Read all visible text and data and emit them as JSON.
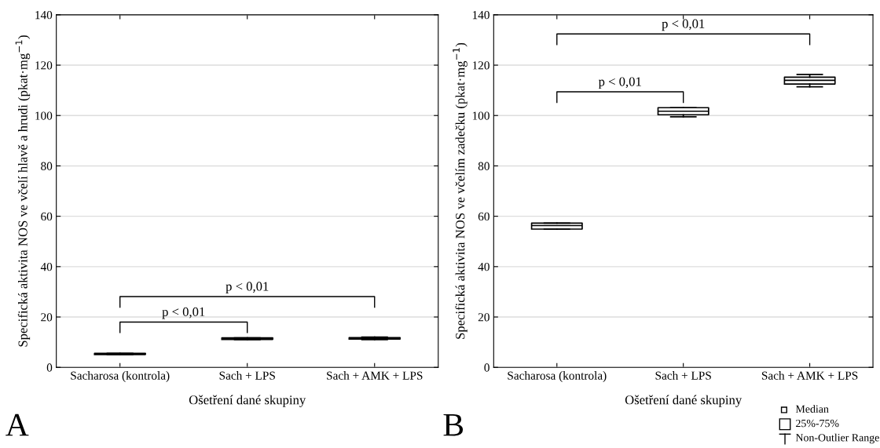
{
  "chart_data": [
    {
      "type": "box",
      "title": "A",
      "xlabel": "Ošetření dané skupiny",
      "ylabel": "Specifická aktivita NOS ve včelí hlavě a hrudi (pkat·mg$^{−1}$)",
      "categories": [
        "Sacharosa (kontrola)",
        "Sach + LPS",
        "Sach + AMK + LPS"
      ],
      "boxes": [
        {
          "low": 5.1,
          "q1": 5.1,
          "median": 5.3,
          "q3": 5.6,
          "high": 5.6
        },
        {
          "low": 11,
          "q1": 11.1,
          "median": 11.3,
          "q3": 11.7,
          "high": 11.7
        },
        {
          "low": 11,
          "q1": 11.2,
          "median": 11.5,
          "q3": 11.8,
          "high": 12
        }
      ],
      "ylim": [
        0,
        140
      ],
      "yticks": [
        0,
        20,
        40,
        60,
        80,
        100,
        120,
        140
      ],
      "grid": "y",
      "annotations": [
        "p < 0,01",
        "p < 0,01"
      ]
    },
    {
      "type": "box",
      "title": "B",
      "xlabel": "Ošetření dané skupiny",
      "ylabel": "Specifická aktivita NOS ve včelím zadečku (pkat·mg$^{−1}$)",
      "categories": [
        "Sacharosa (kontrola)",
        "Sach + LPS",
        "Sach + AMK + LPS"
      ],
      "boxes": [
        {
          "low": 54.9,
          "q1": 54.9,
          "median": 56.3,
          "q3": 57.3,
          "high": 57.3
        },
        {
          "low": 99.5,
          "q1": 100.3,
          "median": 101.7,
          "q3": 103.1,
          "high": 103.1
        },
        {
          "low": 111.4,
          "q1": 112.5,
          "median": 114.0,
          "q3": 115.2,
          "high": 116.3
        }
      ],
      "ylim": [
        0,
        140
      ],
      "yticks": [
        0,
        20,
        40,
        60,
        80,
        100,
        120,
        140
      ],
      "grid": "y",
      "annotations": [
        "p < 0,01",
        "p < 0,01",
        "Median",
        "25%-75%",
        "Non-Outlier Range"
      ]
    }
  ]
}
